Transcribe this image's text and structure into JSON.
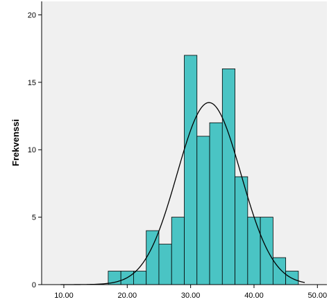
{
  "chart_data": {
    "type": "bar",
    "subtype": "histogram-with-normal-curve",
    "title": "",
    "xlabel": "",
    "ylabel": "Frekvenssi",
    "bin_width": 2,
    "bins": [
      {
        "start": 17,
        "end": 19,
        "count": 1
      },
      {
        "start": 19,
        "end": 21,
        "count": 1
      },
      {
        "start": 21,
        "end": 23,
        "count": 1
      },
      {
        "start": 23,
        "end": 25,
        "count": 4
      },
      {
        "start": 25,
        "end": 27,
        "count": 3
      },
      {
        "start": 27,
        "end": 29,
        "count": 5
      },
      {
        "start": 29,
        "end": 31,
        "count": 17
      },
      {
        "start": 31,
        "end": 33,
        "count": 11
      },
      {
        "start": 33,
        "end": 35,
        "count": 12
      },
      {
        "start": 35,
        "end": 37,
        "count": 16
      },
      {
        "start": 37,
        "end": 39,
        "count": 8
      },
      {
        "start": 39,
        "end": 41,
        "count": 5
      },
      {
        "start": 41,
        "end": 43,
        "count": 5
      },
      {
        "start": 43,
        "end": 45,
        "count": 2
      },
      {
        "start": 45,
        "end": 47,
        "count": 1
      }
    ],
    "normal_curve": {
      "mean": 32.9,
      "sd": 5.05,
      "n": 92,
      "peak": 13.5
    },
    "xlim": [
      6.5,
      51.5
    ],
    "ylim": [
      0,
      21
    ],
    "xticks": [
      10,
      20,
      30,
      40,
      50
    ],
    "xtick_labels": [
      "10.00",
      "20.00",
      "30.00",
      "40.00",
      "50.00"
    ],
    "yticks": [
      0,
      5,
      10,
      15,
      20
    ],
    "ytick_labels": [
      "0",
      "5",
      "10",
      "15",
      "20"
    ],
    "grid": false,
    "colors": {
      "bar_fill": "#4ac4c4",
      "bar_stroke": "#000000",
      "plot_bg": "#f0f0f0",
      "curve": "#000000"
    }
  }
}
